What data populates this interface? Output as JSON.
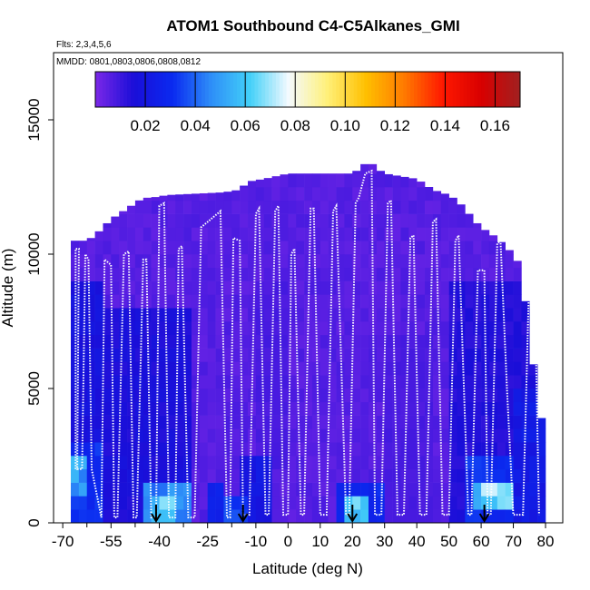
{
  "chart_data": {
    "type": "heatmap",
    "title": "ATOM1 Southbound C4-C5Alkanes_GMI",
    "subtitle_flights": "Flts: 2,3,4,5,6",
    "subtitle_dates": "MMDD: 0801,0803,0806,0808,0812",
    "xlabel": "Latitude (deg N)",
    "ylabel": "Altitude (m)",
    "xlim": [
      -70,
      85
    ],
    "ylim": [
      0,
      17500
    ],
    "x_ticks": [
      -70,
      -55,
      -40,
      -25,
      -10,
      0,
      10,
      20,
      30,
      40,
      50,
      60,
      70,
      80
    ],
    "y_ticks": [
      0,
      5000,
      10000,
      15000
    ],
    "colorbar": {
      "range": [
        0.0,
        0.17
      ],
      "ticks": [
        0.02,
        0.04,
        0.06,
        0.08,
        0.1,
        0.12,
        0.14,
        0.16
      ],
      "tick_labels": [
        "0.02",
        "0.04",
        "0.06",
        "0.08",
        "0.10",
        "0.12",
        "0.14",
        "0.16"
      ],
      "stops": [
        "#7B28E8",
        "#1A0ED8",
        "#0A2AF0",
        "#2E8EF8",
        "#42D0F8",
        "#F4FAFF",
        "#FFF07A",
        "#FFC000",
        "#FF7A00",
        "#FF1800",
        "#D80000",
        "#A02020"
      ]
    },
    "grid": {
      "lat_step": 2.5,
      "alt_step": 500,
      "lat_min": -67.5,
      "lat_max": 80,
      "base_color": "#7B28E8",
      "top_envelope": [
        [
          -67.5,
          10500
        ],
        [
          -62.5,
          10500
        ],
        [
          -60,
          10700
        ],
        [
          -57.5,
          11000
        ],
        [
          -55,
          11300
        ],
        [
          -52.5,
          11500
        ],
        [
          -50,
          11700
        ],
        [
          -47.5,
          11900
        ],
        [
          -45,
          12100
        ],
        [
          -42.5,
          12100
        ],
        [
          -37.5,
          12200
        ],
        [
          -20,
          12300
        ],
        [
          -15,
          12400
        ],
        [
          -12.5,
          12700
        ],
        [
          -7.5,
          12800
        ],
        [
          0,
          13000
        ],
        [
          15,
          13000
        ],
        [
          20,
          13000
        ],
        [
          22.5,
          13200
        ],
        [
          25,
          13500
        ],
        [
          27.5,
          13200
        ],
        [
          30,
          13000
        ],
        [
          40,
          12800
        ],
        [
          45,
          12400
        ],
        [
          50,
          12200
        ],
        [
          52.5,
          12000
        ],
        [
          55,
          11700
        ],
        [
          57.5,
          11300
        ],
        [
          60,
          11000
        ],
        [
          65,
          10600
        ],
        [
          70,
          10000
        ],
        [
          72.5,
          9500
        ],
        [
          75,
          7000
        ],
        [
          77.5,
          4800
        ],
        [
          80,
          3000
        ]
      ],
      "enhanced_regions": [
        {
          "lat": [
            -67.5,
            -57.5
          ],
          "alt": [
            0,
            9000
          ],
          "level": 0.018
        },
        {
          "lat": [
            -67.5,
            -57.5
          ],
          "alt": [
            0,
            3000
          ],
          "level": 0.03
        },
        {
          "lat": [
            -67.5,
            -62.5
          ],
          "alt": [
            1000,
            2500
          ],
          "level": 0.05
        },
        {
          "lat": [
            -57.5,
            -30
          ],
          "alt": [
            0,
            8000
          ],
          "level": 0.016
        },
        {
          "lat": [
            -45,
            -30
          ],
          "alt": [
            0,
            1500
          ],
          "level": 0.045
        },
        {
          "lat": [
            -42.5,
            -35
          ],
          "alt": [
            0,
            800
          ],
          "level": 0.06
        },
        {
          "lat": [
            -25,
            -20
          ],
          "alt": [
            0,
            1500
          ],
          "level": 0.025
        },
        {
          "lat": [
            -20,
            -12.5
          ],
          "alt": [
            0,
            1000
          ],
          "level": 0.035
        },
        {
          "lat": [
            -15,
            -5
          ],
          "alt": [
            0,
            2500
          ],
          "level": 0.02
        },
        {
          "lat": [
            15,
            30
          ],
          "alt": [
            0,
            1500
          ],
          "level": 0.028
        },
        {
          "lat": [
            17.5,
            25
          ],
          "alt": [
            0,
            800
          ],
          "level": 0.06
        },
        {
          "lat": [
            50,
            80
          ],
          "alt": [
            0,
            9000
          ],
          "level": 0.014
        },
        {
          "lat": [
            55,
            70
          ],
          "alt": [
            0,
            2500
          ],
          "level": 0.03
        },
        {
          "lat": [
            57.5,
            70
          ],
          "alt": [
            500,
            1500
          ],
          "level": 0.06
        },
        {
          "lat": [
            60,
            67.5
          ],
          "alt": [
            600,
            1200
          ],
          "level": 0.065
        },
        {
          "lat": [
            70,
            80
          ],
          "alt": [
            0,
            5000
          ],
          "level": 0.022
        },
        {
          "lat": [
            -10,
            0
          ],
          "alt": [
            2000,
            9000
          ],
          "level": 0.008
        },
        {
          "lat": [
            30,
            45
          ],
          "alt": [
            0,
            7000
          ],
          "level": 0.008
        }
      ]
    },
    "flight_track": [
      [
        -66,
        2000
      ],
      [
        -66,
        10200
      ],
      [
        -65,
        10200
      ],
      [
        -65.5,
        2000
      ],
      [
        -64,
        2000
      ],
      [
        -63,
        10000
      ],
      [
        -62,
        9800
      ],
      [
        -61,
        2000
      ],
      [
        -58,
        200
      ],
      [
        -57,
        9800
      ],
      [
        -55,
        9600
      ],
      [
        -54,
        200
      ],
      [
        -53,
        200
      ],
      [
        -51,
        10000
      ],
      [
        -49.5,
        10100
      ],
      [
        -48,
        200
      ],
      [
        -47,
        200
      ],
      [
        -45,
        9800
      ],
      [
        -44,
        9800
      ],
      [
        -42.5,
        200
      ],
      [
        -41,
        200
      ],
      [
        -40,
        11800
      ],
      [
        -38.5,
        11900
      ],
      [
        -37,
        200
      ],
      [
        -35,
        200
      ],
      [
        -34,
        10200
      ],
      [
        -33,
        10300
      ],
      [
        -31,
        200
      ],
      [
        -29,
        200
      ],
      [
        -27,
        11000
      ],
      [
        -25,
        11200
      ],
      [
        -22,
        11500
      ],
      [
        -21,
        11600
      ],
      [
        -19,
        200
      ],
      [
        -18,
        200
      ],
      [
        -17,
        10600
      ],
      [
        -15,
        10500
      ],
      [
        -14,
        300
      ],
      [
        -12,
        300
      ],
      [
        -10,
        11500
      ],
      [
        -9,
        11700
      ],
      [
        -7,
        300
      ],
      [
        -6,
        300
      ],
      [
        -4,
        11600
      ],
      [
        -3,
        11800
      ],
      [
        -1.5,
        300
      ],
      [
        0,
        300
      ],
      [
        1,
        10000
      ],
      [
        2,
        10200
      ],
      [
        4,
        300
      ],
      [
        5,
        300
      ],
      [
        7,
        11700
      ],
      [
        8,
        11700
      ],
      [
        10,
        300
      ],
      [
        12,
        300
      ],
      [
        14,
        11600
      ],
      [
        15,
        11800
      ],
      [
        18,
        300
      ],
      [
        19,
        300
      ],
      [
        21,
        11900
      ],
      [
        22,
        12100
      ],
      [
        24,
        13000
      ],
      [
        26,
        13100
      ],
      [
        27,
        300
      ],
      [
        29,
        300
      ],
      [
        31,
        11900
      ],
      [
        32,
        12000
      ],
      [
        34,
        300
      ],
      [
        36,
        300
      ],
      [
        38,
        10600
      ],
      [
        39,
        10700
      ],
      [
        41,
        300
      ],
      [
        43,
        300
      ],
      [
        45,
        11200
      ],
      [
        46,
        11300
      ],
      [
        48,
        300
      ],
      [
        50,
        300
      ],
      [
        52,
        10500
      ],
      [
        53,
        10700
      ],
      [
        56,
        300
      ],
      [
        57,
        300
      ],
      [
        59,
        9400
      ],
      [
        61,
        9400
      ],
      [
        62,
        300
      ],
      [
        63,
        300
      ],
      [
        65,
        10400
      ],
      [
        66,
        10500
      ],
      [
        68,
        5000
      ],
      [
        70,
        300
      ],
      [
        73,
        300
      ],
      [
        75,
        9500
      ],
      [
        76.5,
        9600
      ],
      [
        78,
        300
      ]
    ],
    "sonde_markers": [
      -41,
      -14,
      20,
      61
    ]
  }
}
